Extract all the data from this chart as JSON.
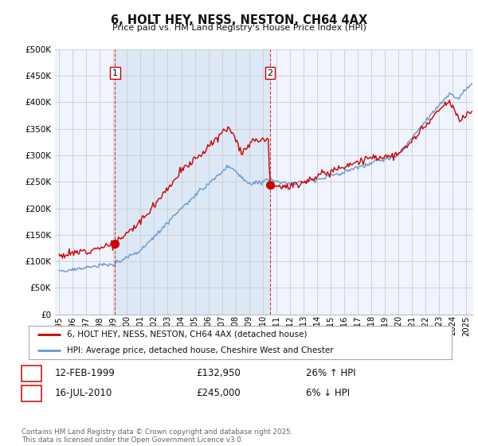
{
  "title": "6, HOLT HEY, NESS, NESTON, CH64 4AX",
  "subtitle": "Price paid vs. HM Land Registry's House Price Index (HPI)",
  "ylim": [
    0,
    500000
  ],
  "yticks": [
    0,
    50000,
    100000,
    150000,
    200000,
    250000,
    300000,
    350000,
    400000,
    450000,
    500000
  ],
  "xlim_start": 1994.7,
  "xlim_end": 2025.5,
  "background_color": "#ffffff",
  "plot_bg_color": "#f0f4ff",
  "grid_color": "#cccccc",
  "red_line_color": "#cc0000",
  "blue_line_color": "#6699cc",
  "shade_color": "#dce8f5",
  "marker1_x": 1999.12,
  "marker1_y": 132950,
  "marker2_x": 2010.54,
  "marker2_y": 245000,
  "legend_label_red": "6, HOLT HEY, NESS, NESTON, CH64 4AX (detached house)",
  "legend_label_blue": "HPI: Average price, detached house, Cheshire West and Chester",
  "annotation1_num": "1",
  "annotation1_date": "12-FEB-1999",
  "annotation1_price": "£132,950",
  "annotation1_hpi": "26% ↑ HPI",
  "annotation2_num": "2",
  "annotation2_date": "16-JUL-2010",
  "annotation2_price": "£245,000",
  "annotation2_hpi": "6% ↓ HPI",
  "footer": "Contains HM Land Registry data © Crown copyright and database right 2025.\nThis data is licensed under the Open Government Licence v3.0.",
  "xtick_years": [
    1995,
    1996,
    1997,
    1998,
    1999,
    2000,
    2001,
    2002,
    2003,
    2004,
    2005,
    2006,
    2007,
    2008,
    2009,
    2010,
    2011,
    2012,
    2013,
    2014,
    2015,
    2016,
    2017,
    2018,
    2019,
    2020,
    2021,
    2022,
    2023,
    2024,
    2025
  ]
}
